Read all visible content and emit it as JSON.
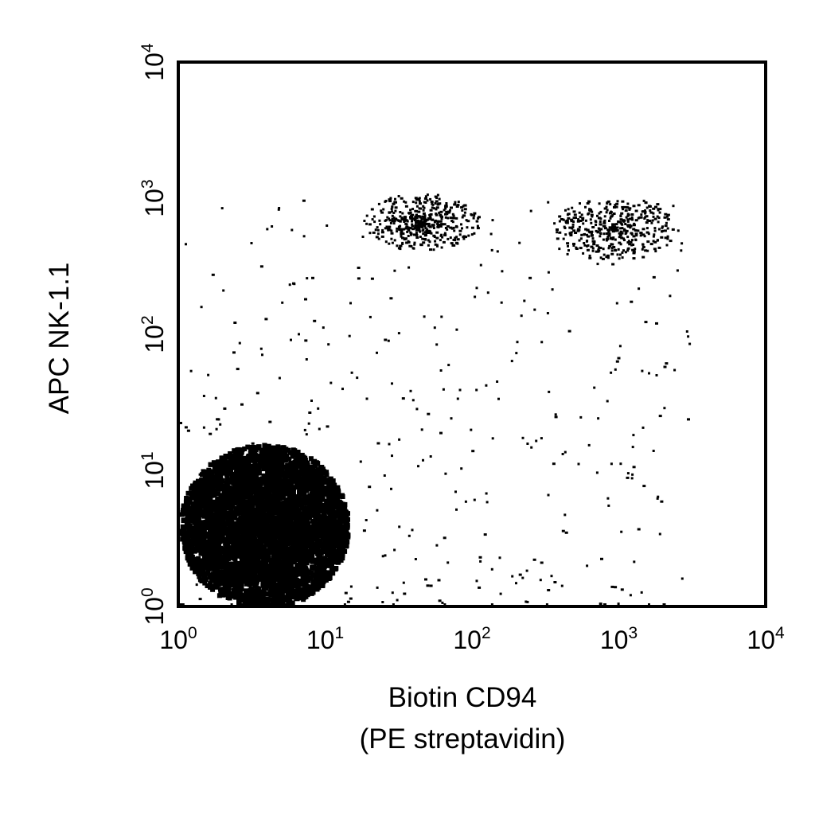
{
  "chart_data": {
    "type": "scatter",
    "title": "",
    "xlabel": "Biotin CD94",
    "xlabel_line2": "(PE streptavidin)",
    "ylabel": "APC NK-1.1",
    "xscale": "log",
    "yscale": "log",
    "xlim": [
      1,
      10000
    ],
    "ylim": [
      1,
      10000
    ],
    "grid": false,
    "legend": "none",
    "point_color": "#000000",
    "x_ticks": [
      {
        "base": "10",
        "exp": "0",
        "value": 1
      },
      {
        "base": "10",
        "exp": "1",
        "value": 10
      },
      {
        "base": "10",
        "exp": "2",
        "value": 100
      },
      {
        "base": "10",
        "exp": "3",
        "value": 1000
      },
      {
        "base": "10",
        "exp": "4",
        "value": 10000
      }
    ],
    "y_ticks": [
      {
        "base": "10",
        "exp": "0",
        "value": 1
      },
      {
        "base": "10",
        "exp": "1",
        "value": 10
      },
      {
        "base": "10",
        "exp": "2",
        "value": 100
      },
      {
        "base": "10",
        "exp": "3",
        "value": 1000
      },
      {
        "base": "10",
        "exp": "4",
        "value": 10000
      }
    ],
    "populations": [
      {
        "name": "",
        "density": "very high",
        "x_range": [
          1,
          14
        ],
        "y_range": [
          1,
          16
        ],
        "events": 4500
      },
      {
        "name": "",
        "density": "high",
        "x_range": [
          18,
          110
        ],
        "y_range": [
          420,
          1100
        ],
        "events": 450
      },
      {
        "name": "",
        "density": "high",
        "x_range": [
          350,
          2400
        ],
        "y_range": [
          350,
          1050
        ],
        "events": 420
      },
      {
        "name": "",
        "density": "low",
        "x_range": [
          1,
          3000
        ],
        "y_range": [
          1,
          1000
        ],
        "events": 380
      }
    ]
  }
}
